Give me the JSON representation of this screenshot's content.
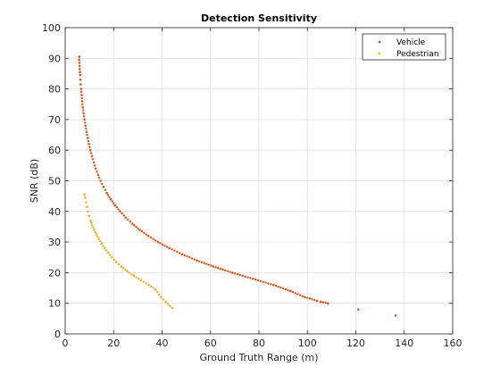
{
  "chart_data": {
    "type": "scatter",
    "title": "Detection Sensitivity",
    "xlabel": "Ground Truth Range (m)",
    "ylabel": "SNR (dB)",
    "xlim": [
      0,
      160
    ],
    "ylim": [
      0,
      100
    ],
    "xticks": [
      "0",
      "20",
      "40",
      "60",
      "80",
      "100",
      "120",
      "140",
      "160"
    ],
    "yticks": [
      "0",
      "10",
      "20",
      "30",
      "40",
      "50",
      "60",
      "70",
      "80",
      "90",
      "100"
    ],
    "grid": true,
    "legend_position": "top-right",
    "series": [
      {
        "name": "Vehicle",
        "color": "#D95319",
        "points": [
          [
            5.8,
            90.5
          ],
          [
            5.8,
            89.5
          ],
          [
            5.9,
            88.5
          ],
          [
            6.0,
            87.5
          ],
          [
            6.0,
            86.5
          ],
          [
            6.1,
            85.5
          ],
          [
            6.2,
            84.5
          ],
          [
            6.3,
            83.0
          ],
          [
            6.4,
            81.5
          ],
          [
            6.6,
            80.0
          ],
          [
            6.8,
            78.0
          ],
          [
            7.0,
            76.0
          ],
          [
            7.3,
            74.0
          ],
          [
            7.6,
            72.0
          ],
          [
            8.0,
            70.0
          ],
          [
            8.4,
            68.0
          ],
          [
            8.8,
            66.0
          ],
          [
            9.3,
            64.0
          ],
          [
            9.8,
            62.0
          ],
          [
            10.4,
            60.0
          ],
          [
            11.1,
            58.0
          ],
          [
            11.8,
            56.0
          ],
          [
            12.6,
            54.0
          ],
          [
            13.6,
            52.0
          ],
          [
            14.6,
            50.0
          ],
          [
            15.8,
            48.0
          ],
          [
            17.2,
            46.0
          ],
          [
            18.8,
            44.0
          ],
          [
            20.6,
            42.0
          ],
          [
            22.7,
            40.0
          ],
          [
            25.0,
            38.0
          ],
          [
            27.7,
            36.0
          ],
          [
            30.8,
            34.0
          ],
          [
            34.3,
            32.0
          ],
          [
            38.3,
            30.0
          ],
          [
            43.0,
            28.0
          ],
          [
            48.3,
            26.0
          ],
          [
            54.4,
            24.0
          ],
          [
            61.2,
            22.0
          ],
          [
            69.0,
            20.0
          ],
          [
            77.5,
            18.0
          ],
          [
            86.0,
            16.0
          ],
          [
            93.0,
            14.0
          ],
          [
            99.0,
            12.0
          ],
          [
            104.0,
            10.8
          ],
          [
            105.5,
            10.5
          ],
          [
            108.5,
            10.0
          ],
          [
            121.0,
            8.0
          ],
          [
            136.5,
            6.0
          ]
        ]
      },
      {
        "name": "Pedestrian",
        "color": "#EDB120",
        "points": [
          [
            8.0,
            45.5
          ],
          [
            8.3,
            44.5
          ],
          [
            8.6,
            43.0
          ],
          [
            9.0,
            41.5
          ],
          [
            9.4,
            40.0
          ],
          [
            9.9,
            38.5
          ],
          [
            10.5,
            37.0
          ],
          [
            11.2,
            35.5
          ],
          [
            12.0,
            34.0
          ],
          [
            12.9,
            32.5
          ],
          [
            13.9,
            31.0
          ],
          [
            15.0,
            29.5
          ],
          [
            16.3,
            28.0
          ],
          [
            17.7,
            26.5
          ],
          [
            19.3,
            25.0
          ],
          [
            21.1,
            23.5
          ],
          [
            23.2,
            22.0
          ],
          [
            25.6,
            20.5
          ],
          [
            28.3,
            19.0
          ],
          [
            31.3,
            17.5
          ],
          [
            34.5,
            16.0
          ],
          [
            37.3,
            14.5
          ],
          [
            39.5,
            12.0
          ],
          [
            41.5,
            10.5
          ],
          [
            43.2,
            9.2
          ],
          [
            44.2,
            8.5
          ]
        ]
      }
    ]
  }
}
